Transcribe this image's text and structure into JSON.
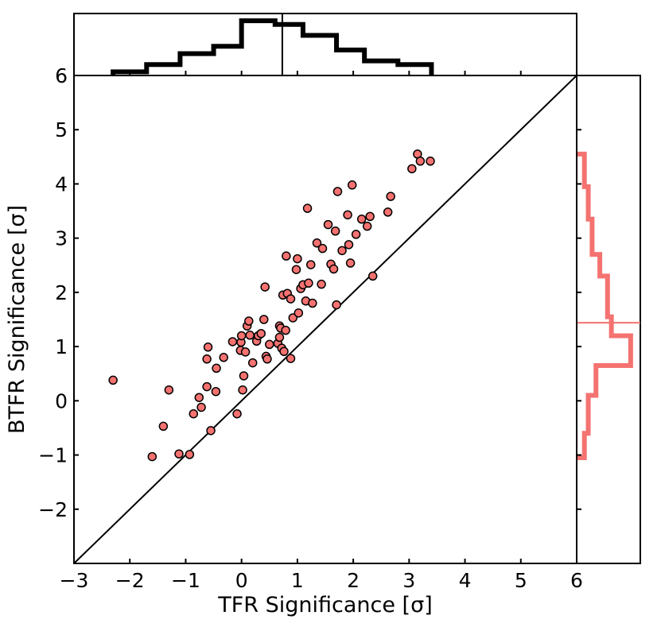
{
  "chart_data": {
    "type": "scatter",
    "xlabel": "TFR Significance [σ]",
    "ylabel": "BTFR Significance [σ]",
    "xlim": [
      -3,
      6
    ],
    "ylim": [
      -3,
      6
    ],
    "x_ticks": [
      -3,
      -2,
      -1,
      0,
      1,
      2,
      3,
      4,
      5,
      6
    ],
    "x_tick_labels": [
      "−3",
      "−2",
      "−1",
      "0",
      "1",
      "2",
      "3",
      "4",
      "5",
      "6"
    ],
    "y_ticks": [
      -2,
      -1,
      0,
      1,
      2,
      3,
      4,
      5,
      6
    ],
    "y_tick_labels": [
      "−2",
      "−1",
      "0",
      "1",
      "2",
      "3",
      "4",
      "5",
      "6"
    ],
    "one_to_one_line": true,
    "point_color": "#f47270",
    "points": [
      [
        -2.3,
        0.38
      ],
      [
        -1.6,
        -1.03
      ],
      [
        -1.4,
        -0.47
      ],
      [
        -1.3,
        0.2
      ],
      [
        -1.12,
        -0.98
      ],
      [
        -0.93,
        -0.99
      ],
      [
        -0.86,
        -0.24
      ],
      [
        -0.76,
        0.06
      ],
      [
        -0.72,
        -0.12
      ],
      [
        -0.62,
        0.26
      ],
      [
        -0.62,
        0.77
      ],
      [
        -0.6,
        0.99
      ],
      [
        -0.55,
        -0.55
      ],
      [
        -0.46,
        0.17
      ],
      [
        -0.45,
        0.6
      ],
      [
        -0.32,
        0.8
      ],
      [
        -0.16,
        1.09
      ],
      [
        -0.08,
        -0.24
      ],
      [
        -0.02,
        0.93
      ],
      [
        -0.01,
        1.08
      ],
      [
        0.0,
        1.2
      ],
      [
        0.02,
        0.2
      ],
      [
        0.04,
        0.46
      ],
      [
        0.07,
        0.9
      ],
      [
        0.1,
        1.38
      ],
      [
        0.13,
        1.47
      ],
      [
        0.15,
        1.21
      ],
      [
        0.2,
        0.7
      ],
      [
        0.27,
        1.1
      ],
      [
        0.3,
        1.2
      ],
      [
        0.35,
        1.24
      ],
      [
        0.4,
        1.5
      ],
      [
        0.42,
        2.1
      ],
      [
        0.44,
        0.82
      ],
      [
        0.46,
        0.77
      ],
      [
        0.5,
        1.04
      ],
      [
        0.65,
        1.06
      ],
      [
        0.68,
        1.17
      ],
      [
        0.68,
        1.38
      ],
      [
        0.7,
        1.34
      ],
      [
        0.72,
        0.97
      ],
      [
        0.74,
        1.95
      ],
      [
        0.76,
        0.91
      ],
      [
        0.79,
        1.3
      ],
      [
        0.8,
        2.67
      ],
      [
        0.82,
        1.98
      ],
      [
        0.88,
        1.88
      ],
      [
        0.88,
        0.78
      ],
      [
        0.92,
        1.53
      ],
      [
        0.98,
        2.42
      ],
      [
        1.0,
        2.62
      ],
      [
        1.02,
        1.62
      ],
      [
        1.06,
        2.07
      ],
      [
        1.1,
        2.14
      ],
      [
        1.15,
        1.84
      ],
      [
        1.18,
        3.55
      ],
      [
        1.2,
        2.17
      ],
      [
        1.24,
        2.51
      ],
      [
        1.27,
        1.8
      ],
      [
        1.35,
        2.91
      ],
      [
        1.43,
        2.15
      ],
      [
        1.45,
        2.81
      ],
      [
        1.55,
        3.25
      ],
      [
        1.6,
        2.52
      ],
      [
        1.65,
        2.43
      ],
      [
        1.68,
        3.13
      ],
      [
        1.7,
        1.77
      ],
      [
        1.72,
        3.86
      ],
      [
        1.8,
        2.77
      ],
      [
        1.9,
        3.43
      ],
      [
        1.92,
        2.88
      ],
      [
        1.95,
        2.54
      ],
      [
        1.98,
        3.98
      ],
      [
        2.05,
        3.07
      ],
      [
        2.15,
        3.35
      ],
      [
        2.25,
        3.22
      ],
      [
        2.3,
        3.4
      ],
      [
        2.35,
        2.3
      ],
      [
        2.62,
        3.48
      ],
      [
        2.67,
        3.77
      ],
      [
        3.05,
        4.28
      ],
      [
        3.15,
        4.55
      ],
      [
        3.2,
        4.42
      ],
      [
        3.38,
        4.42
      ]
    ],
    "top_histogram": {
      "orientation": "vertical",
      "color": "#000000",
      "bin_edges": [
        -2.3,
        -1.7,
        -1.1,
        -0.5,
        0.0,
        0.6,
        1.1,
        1.7,
        2.2,
        2.8,
        3.4
      ],
      "counts": [
        1,
        3,
        6,
        8,
        15,
        14,
        11,
        7,
        4,
        3
      ],
      "mean_line": 0.73
    },
    "right_histogram": {
      "orientation": "horizontal",
      "color": "#f47270",
      "bin_edges": [
        -1.05,
        -0.6,
        0.1,
        0.65,
        1.2,
        1.55,
        2.3,
        2.7,
        3.35,
        3.95,
        4.55
      ],
      "counts": [
        2,
        3,
        5,
        14,
        9,
        8,
        6,
        4,
        3,
        2
      ],
      "mean_line": 1.44
    }
  }
}
